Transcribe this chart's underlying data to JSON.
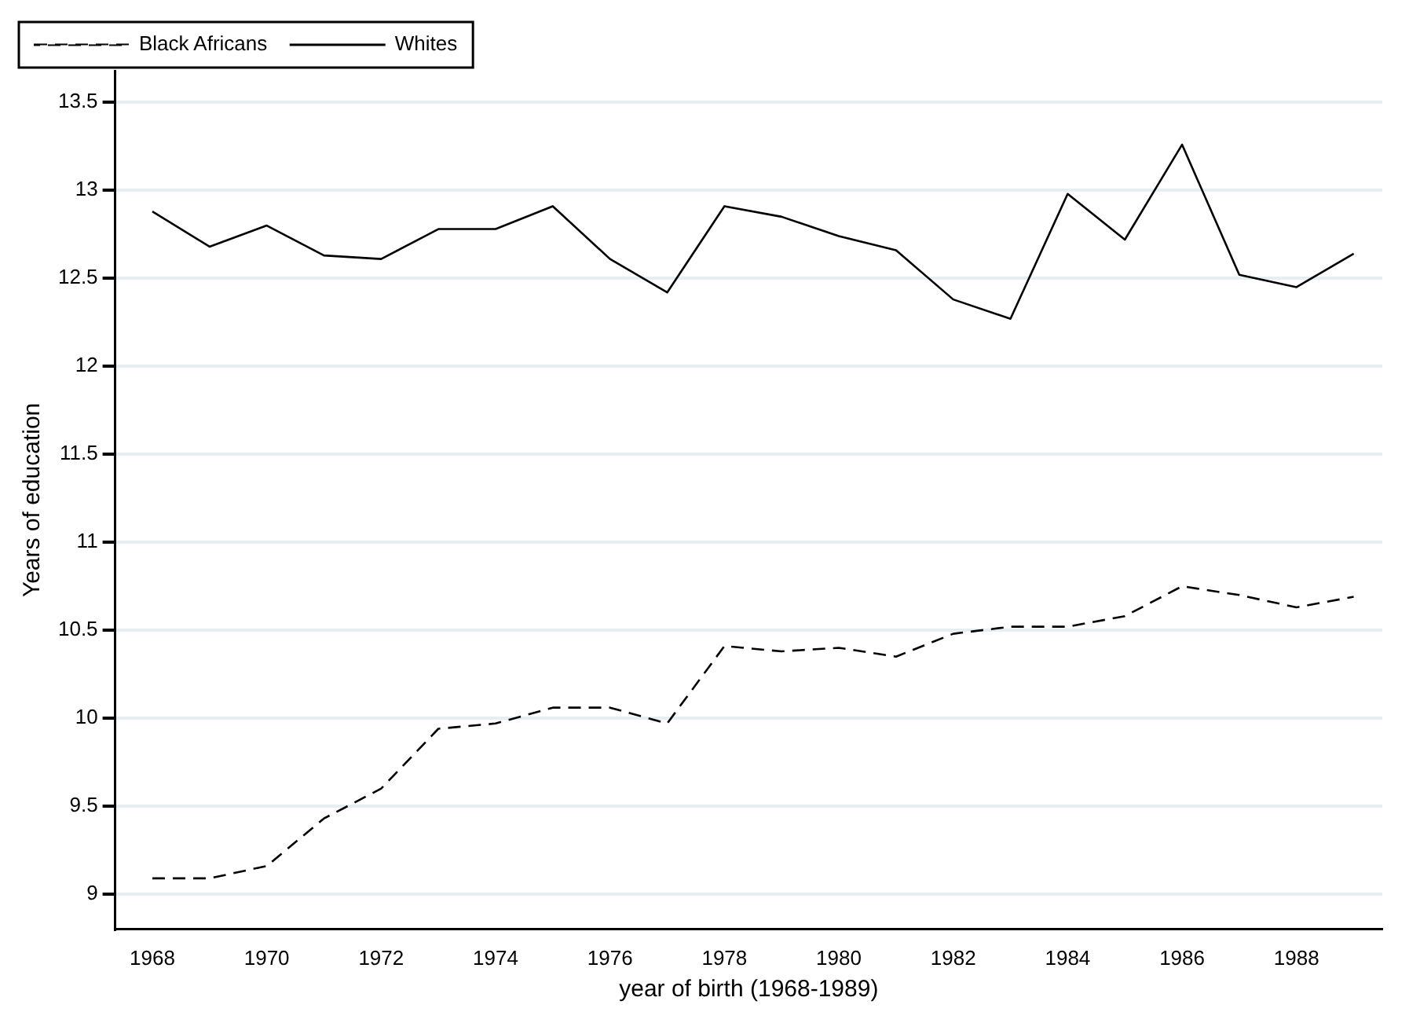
{
  "chart_data": {
    "type": "line",
    "xlabel": "year of birth (1968-1989)",
    "ylabel": "Years of education",
    "x": [
      1968,
      1969,
      1970,
      1971,
      1972,
      1973,
      1974,
      1975,
      1976,
      1977,
      1978,
      1979,
      1980,
      1981,
      1982,
      1983,
      1984,
      1985,
      1986,
      1987,
      1988,
      1989
    ],
    "series": [
      {
        "name": "Black Africans",
        "color": "#000000",
        "line_style": "dashed",
        "values": [
          9.09,
          9.09,
          9.16,
          9.43,
          9.6,
          9.94,
          9.97,
          10.06,
          10.06,
          9.97,
          10.41,
          10.38,
          10.4,
          10.35,
          10.48,
          10.52,
          10.52,
          10.58,
          10.75,
          10.7,
          10.63,
          10.69
        ]
      },
      {
        "name": "Whites",
        "color": "#000000",
        "line_style": "solid",
        "values": [
          12.88,
          12.68,
          12.8,
          12.63,
          12.61,
          12.78,
          12.78,
          12.91,
          12.61,
          12.42,
          12.91,
          12.85,
          12.74,
          12.66,
          12.38,
          12.27,
          12.98,
          12.72,
          13.26,
          12.52,
          12.45,
          12.64
        ]
      }
    ],
    "xlim": [
      1967.35,
      1989.5
    ],
    "xticks": [
      1968,
      1970,
      1972,
      1974,
      1976,
      1978,
      1980,
      1982,
      1984,
      1986,
      1988
    ],
    "ylim": [
      8.8,
      13.68
    ],
    "yticks": [
      9,
      9.5,
      10,
      10.5,
      11,
      11.5,
      12,
      12.5,
      13,
      13.5
    ],
    "grid": "y",
    "legend": "top left",
    "marker": "none"
  }
}
